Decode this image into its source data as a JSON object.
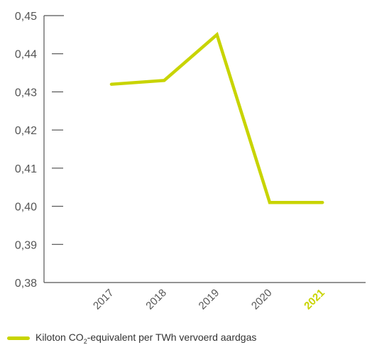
{
  "colors": {
    "series": "#c8d400",
    "axis": "#555555",
    "text": "#555555",
    "highlight": "#c8d400"
  },
  "chart_data": {
    "type": "line",
    "x": [
      "2017",
      "2018",
      "2019",
      "2020",
      "2021"
    ],
    "series": [
      {
        "name": "Kiloton CO₂-equivalent per TWh vervoerd aardgas",
        "values": [
          0.432,
          0.433,
          0.445,
          0.401,
          0.401
        ]
      }
    ],
    "ylim": [
      0.38,
      0.45
    ],
    "yticks": [
      "0,45",
      "0,44",
      "0,43",
      "0,42",
      "0,41",
      "0,40",
      "0,39",
      "0,38"
    ],
    "highlight_category": "2021",
    "legend": {
      "position": "bottom-left",
      "label_prefix": "Kiloton CO",
      "label_sub": "2",
      "label_suffix": "-equivalent per TWh vervoerd aardgas"
    },
    "grid": false
  }
}
